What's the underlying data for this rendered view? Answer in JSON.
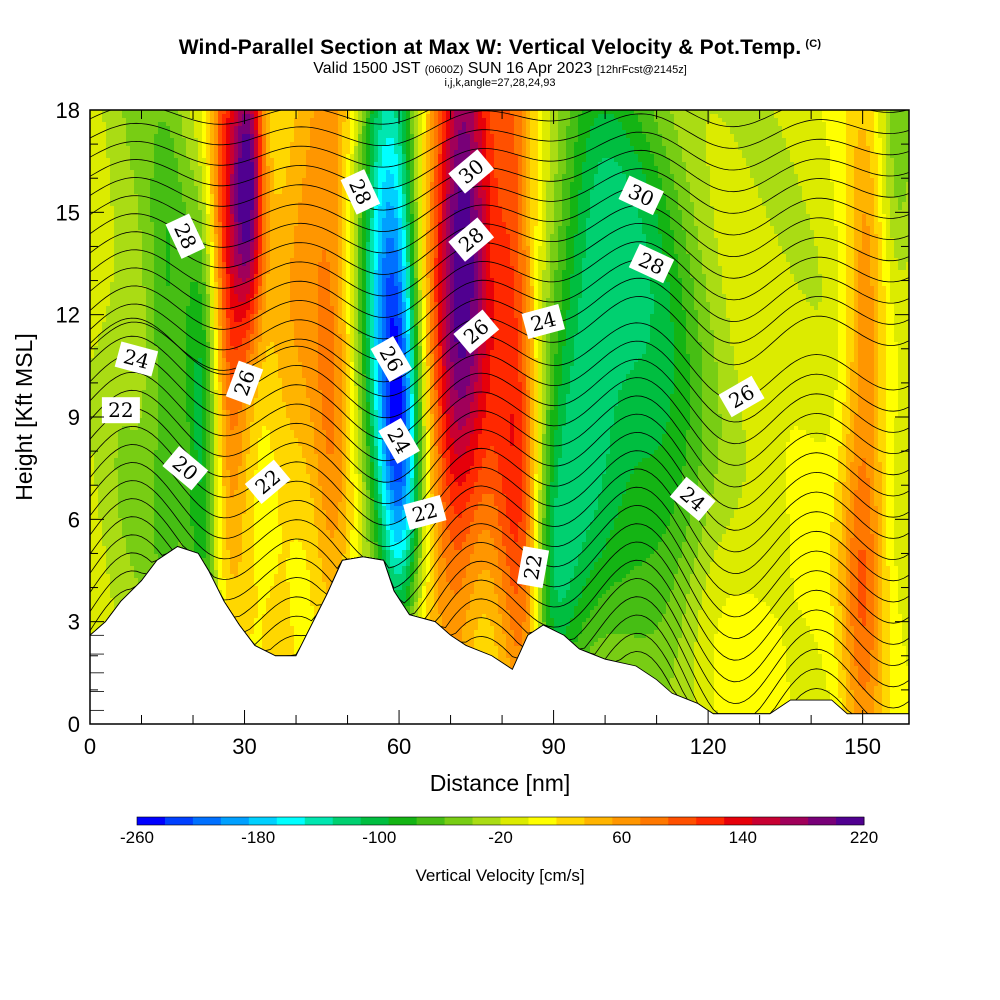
{
  "header": {
    "title": "Wind-Parallel Section at Max W: Vertical Velocity & Pot.Temp.",
    "copyright": "(C)",
    "valid_prefix": "Valid 1500 JST",
    "valid_utc": "(0600Z)",
    "valid_day": "SUN 16 Apr 2023",
    "forecast": "[12hrFcst@2145z]",
    "indices": "i,j,k,angle=27,28,24,93"
  },
  "chart_data": {
    "type": "heatmap",
    "xlabel": "Distance [nm]",
    "ylabel": "Height [Kft MSL]",
    "xlim": [
      0,
      159
    ],
    "ylim": [
      0,
      18
    ],
    "x_ticks": [
      0,
      30,
      60,
      90,
      120,
      150
    ],
    "y_ticks": [
      0,
      3,
      6,
      9,
      12,
      15,
      18
    ],
    "colorbar": {
      "title": "Vertical Velocity [cm/s]",
      "range": [
        -260,
        220
      ],
      "step": 20,
      "tick_labels": [
        -260,
        -180,
        -100,
        -20,
        60,
        140,
        220
      ],
      "colors": [
        "#0000ff",
        "#0040ff",
        "#0070ff",
        "#00a0ff",
        "#00d0ff",
        "#00ffff",
        "#00e6b0",
        "#00d070",
        "#00be40",
        "#14b414",
        "#46be14",
        "#78cd14",
        "#aadc14",
        "#dceb00",
        "#ffff00",
        "#ffd700",
        "#ffb400",
        "#ff9600",
        "#ff7800",
        "#ff5000",
        "#ff2800",
        "#e6000a",
        "#c80032",
        "#a0005a",
        "#780078",
        "#500090"
      ]
    },
    "terrain_kft": [
      [
        0,
        2.6
      ],
      [
        3,
        3.0
      ],
      [
        6,
        3.6
      ],
      [
        10,
        4.2
      ],
      [
        13,
        4.8
      ],
      [
        17,
        5.2
      ],
      [
        21,
        5.0
      ],
      [
        23,
        4.5
      ],
      [
        26,
        3.6
      ],
      [
        29,
        2.9
      ],
      [
        32,
        2.3
      ],
      [
        36,
        2.0
      ],
      [
        40,
        2.0
      ],
      [
        43,
        2.9
      ],
      [
        46,
        3.8
      ],
      [
        49,
        4.8
      ],
      [
        53,
        4.9
      ],
      [
        57,
        4.8
      ],
      [
        59,
        3.9
      ],
      [
        62,
        3.2
      ],
      [
        67,
        3.0
      ],
      [
        70,
        2.6
      ],
      [
        73,
        2.3
      ],
      [
        78,
        2.0
      ],
      [
        82,
        1.6
      ],
      [
        85,
        2.6
      ],
      [
        88,
        2.9
      ],
      [
        92,
        2.6
      ],
      [
        95,
        2.2
      ],
      [
        100,
        1.9
      ],
      [
        106,
        1.7
      ],
      [
        110,
        1.3
      ],
      [
        113,
        0.9
      ],
      [
        118,
        0.6
      ],
      [
        121,
        0.3
      ],
      [
        132,
        0.3
      ],
      [
        136,
        0.7
      ],
      [
        144,
        0.7
      ],
      [
        147,
        0.3
      ],
      [
        159,
        0.3
      ]
    ],
    "velocity_features": [
      {
        "x": 7,
        "y": 12,
        "sx": 4,
        "sy": 12,
        "value": -30
      },
      {
        "x": 15,
        "y": 11,
        "sx": 3,
        "sy": 7,
        "value": -70
      },
      {
        "x": 22,
        "y": 8.5,
        "sx": 2.5,
        "sy": 5,
        "value": -120
      },
      {
        "x": 27,
        "y": 14,
        "sx": 3,
        "sy": 6,
        "value": 150
      },
      {
        "x": 31,
        "y": 16,
        "sx": 2,
        "sy": 3,
        "value": 170
      },
      {
        "x": 38,
        "y": 10,
        "sx": 4,
        "sy": 8,
        "value": 40
      },
      {
        "x": 42,
        "y": 16,
        "sx": 3,
        "sy": 4,
        "value": 40
      },
      {
        "x": 47,
        "y": 12,
        "sx": 3,
        "sy": 9,
        "value": 80
      },
      {
        "x": 52,
        "y": 14,
        "sx": 3,
        "sy": 7,
        "value": 20
      },
      {
        "x": 57,
        "y": 14,
        "sx": 4,
        "sy": 6,
        "value": -160
      },
      {
        "x": 60,
        "y": 10,
        "sx": 3,
        "sy": 5,
        "value": -120
      },
      {
        "x": 61,
        "y": 7,
        "sx": 3,
        "sy": 3,
        "value": -80
      },
      {
        "x": 66,
        "y": 11,
        "sx": 3,
        "sy": 8,
        "value": 60
      },
      {
        "x": 71,
        "y": 14,
        "sx": 3,
        "sy": 8,
        "value": 160
      },
      {
        "x": 75,
        "y": 15,
        "sx": 3,
        "sy": 5,
        "value": 120
      },
      {
        "x": 77,
        "y": 9,
        "sx": 4,
        "sy": 6,
        "value": 40
      },
      {
        "x": 82,
        "y": 12,
        "sx": 3,
        "sy": 8,
        "value": 110
      },
      {
        "x": 85,
        "y": 4,
        "sx": 2.5,
        "sy": 5,
        "value": 90
      },
      {
        "x": 89,
        "y": 4,
        "sx": 4,
        "sy": 3,
        "value": -100
      },
      {
        "x": 95,
        "y": 8,
        "sx": 5,
        "sy": 5,
        "value": -70
      },
      {
        "x": 98,
        "y": 15,
        "sx": 6,
        "sy": 4,
        "value": -60
      },
      {
        "x": 107,
        "y": 11,
        "sx": 8,
        "sy": 6,
        "value": -100
      },
      {
        "x": 114,
        "y": 6,
        "sx": 5,
        "sy": 3,
        "value": -30
      },
      {
        "x": 130,
        "y": 12,
        "sx": 12,
        "sy": 8,
        "value": -10
      },
      {
        "x": 132,
        "y": 3,
        "sx": 10,
        "sy": 3,
        "value": 20
      },
      {
        "x": 150,
        "y": 4,
        "sx": 3,
        "sy": 5,
        "value": 90
      },
      {
        "x": 151,
        "y": 14,
        "sx": 3,
        "sy": 5,
        "value": 60
      },
      {
        "x": 156,
        "y": 16,
        "sx": 3,
        "sy": 3,
        "value": -50
      }
    ],
    "contour_labels": [
      {
        "value": "28",
        "x": 18.5,
        "y": 14.3,
        "angle": 65
      },
      {
        "value": "28",
        "x": 52.5,
        "y": 15.6,
        "angle": 65
      },
      {
        "value": "30",
        "x": 74,
        "y": 16.2,
        "angle": -40
      },
      {
        "value": "28",
        "x": 74,
        "y": 14.2,
        "angle": -40
      },
      {
        "value": "30",
        "x": 107,
        "y": 15.5,
        "angle": 25
      },
      {
        "value": "28",
        "x": 109,
        "y": 13.5,
        "angle": 25
      },
      {
        "value": "24",
        "x": 9,
        "y": 10.7,
        "angle": 15
      },
      {
        "value": "26",
        "x": 30,
        "y": 10,
        "angle": -70
      },
      {
        "value": "26",
        "x": 58.5,
        "y": 10.7,
        "angle": 60
      },
      {
        "value": "26",
        "x": 75,
        "y": 11.5,
        "angle": -40
      },
      {
        "value": "24",
        "x": 88,
        "y": 11.8,
        "angle": -15
      },
      {
        "value": "22",
        "x": 6,
        "y": 9.2,
        "angle": 0
      },
      {
        "value": "24",
        "x": 60,
        "y": 8.3,
        "angle": 60
      },
      {
        "value": "26",
        "x": 126.5,
        "y": 9.6,
        "angle": -30
      },
      {
        "value": "20",
        "x": 18.5,
        "y": 7.5,
        "angle": 40
      },
      {
        "value": "22",
        "x": 34.5,
        "y": 7.1,
        "angle": -40
      },
      {
        "value": "22",
        "x": 65,
        "y": 6.2,
        "angle": -15
      },
      {
        "value": "24",
        "x": 117,
        "y": 6.6,
        "angle": 40
      },
      {
        "value": "22",
        "x": 86,
        "y": 4.6,
        "angle": -80
      }
    ]
  }
}
